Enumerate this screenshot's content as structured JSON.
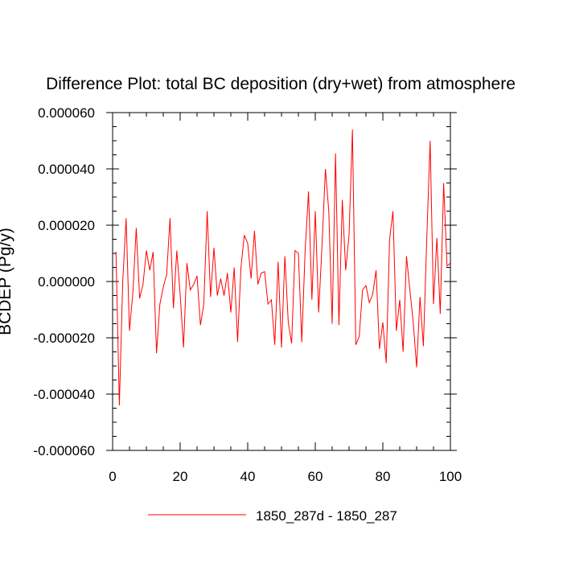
{
  "chart_data": {
    "type": "line",
    "title": "Difference Plot: total BC deposition (dry+wet) from atmosphere",
    "ylabel": "BCDEP (Pg/y)",
    "xlabel": "",
    "xlim": [
      0,
      100
    ],
    "ylim": [
      -6e-05,
      6e-05
    ],
    "x_ticks": [
      0,
      20,
      40,
      60,
      80,
      100
    ],
    "x_tick_labels": [
      "0",
      "20",
      "40",
      "60",
      "80",
      "100"
    ],
    "y_ticks": [
      -6e-05,
      -4e-05,
      -2e-05,
      0,
      2e-05,
      4e-05,
      6e-05
    ],
    "y_tick_labels": [
      "-0.000060",
      "-0.000040",
      "-0.000020",
      "0.000000",
      "0.000020",
      "0.000040",
      "0.000060"
    ],
    "grid": false,
    "legend_position": "bottom-center",
    "series": [
      {
        "name": "1850_287d - 1850_287",
        "color": "#ff0000",
        "x": [
          1,
          2,
          3,
          4,
          5,
          6,
          7,
          8,
          9,
          10,
          11,
          12,
          13,
          14,
          15,
          16,
          17,
          18,
          19,
          20,
          21,
          22,
          23,
          24,
          25,
          26,
          27,
          28,
          29,
          30,
          31,
          32,
          33,
          34,
          35,
          36,
          37,
          38,
          39,
          40,
          41,
          42,
          43,
          44,
          45,
          46,
          47,
          48,
          49,
          50,
          51,
          52,
          53,
          54,
          55,
          56,
          57,
          58,
          59,
          60,
          61,
          62,
          63,
          64,
          65,
          66,
          67,
          68,
          69,
          70,
          71,
          72,
          73,
          74,
          75,
          76,
          77,
          78,
          79,
          80,
          81,
          82,
          83,
          84,
          85,
          86,
          87,
          88,
          89,
          90,
          91,
          92,
          93,
          94,
          95,
          96,
          97,
          98,
          99,
          100
        ],
        "values": [
          1.05e-05,
          -4.4e-05,
          0.0,
          2.25e-05,
          -1.75e-05,
          -4e-06,
          1.9e-05,
          -6e-06,
          -1e-06,
          1.1e-05,
          4e-06,
          1.05e-05,
          -2.55e-05,
          -8e-06,
          -2e-06,
          2.5e-06,
          2.25e-05,
          -9.5e-06,
          1.1e-05,
          -4.5e-06,
          -2.35e-05,
          6.5e-06,
          -3e-06,
          -1e-06,
          2e-06,
          -1.55e-05,
          -8e-06,
          2.5e-05,
          -5.5e-06,
          1.2e-05,
          -5e-06,
          1e-06,
          -5e-06,
          3e-06,
          -1.1e-05,
          5e-06,
          -2.15e-05,
          5e-06,
          1.65e-05,
          1.35e-05,
          1e-06,
          1.8e-05,
          -1e-06,
          3e-06,
          3.5e-06,
          -8e-06,
          -6.5e-06,
          -2.25e-05,
          7e-06,
          -2.35e-05,
          9e-06,
          -1.45e-05,
          -2.2e-05,
          1.1e-05,
          1e-05,
          -2.15e-05,
          1.1e-05,
          3.2e-05,
          -6.5e-06,
          2.5e-05,
          -1.1e-05,
          1.3e-05,
          4e-05,
          2.5e-05,
          -1.5e-05,
          4.55e-05,
          -1.55e-05,
          2.9e-05,
          4e-06,
          1.65e-05,
          5.4e-05,
          -2.25e-05,
          -1.95e-05,
          -3e-06,
          -1.5e-06,
          -7.5e-06,
          -4.5e-06,
          4e-06,
          -2.4e-05,
          -1.45e-05,
          -2.9e-05,
          1.5e-05,
          2.5e-05,
          -1.75e-05,
          -6.5e-06,
          -2.5e-05,
          9e-06,
          -3e-06,
          -1.45e-05,
          -3.05e-05,
          -5.5e-06,
          -2.3e-05,
          1.5e-05,
          5e-05,
          -8e-06,
          1.55e-05,
          -1.15e-05,
          3.5e-05,
          5.5e-06,
          6.5e-06
        ]
      }
    ]
  }
}
